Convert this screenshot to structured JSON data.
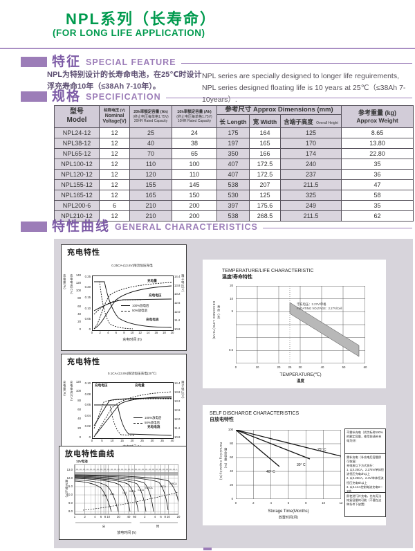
{
  "header": {
    "title_cn": "NPL系列（长寿命）",
    "title_en": "(FOR LONG LIFE APPLICATION)"
  },
  "sections": {
    "feature": {
      "cn": "特征",
      "en": "SPECIAL FEATURE"
    },
    "spec": {
      "cn": "规格",
      "en": "SPECIFICATION"
    },
    "curves": {
      "cn": "特性曲线",
      "en": "GENERAL CHARACTERISTICS"
    }
  },
  "feature": {
    "cn1": "NPL为特别设计的长寿命电池，在25℃时设计",
    "cn2": "浮充寿命10年（≤38Ah 7-10年）。",
    "en1": "NPL series are specially designed to longer life reguirements,",
    "en2": "NPL series designed floating life is 10 years at 25℃（≤38Ah 7-10years）."
  },
  "spec_table": {
    "model_cn": "型号",
    "model_en": "Model",
    "voltage_l1": "标称电压 (V)",
    "voltage_l2": "Nominal",
    "voltage_l3": "Voltage(V)",
    "cap20_l1": "20h率额定容量 (Ah)",
    "cap20_l2": "(终止电压每单格1.75V)",
    "cap20_l3": "20HR Rated Capacity",
    "cap10_l1": "10h率额定容量 (Ah)",
    "cap10_l2": "(终止电压每单格1.75V)",
    "cap10_l3": "10HR Rated Capacity",
    "dims": "参考尺寸 Approx Dimensions (mm)",
    "len": "长 Length",
    "wid": "宽 Width",
    "hgt_cn": "含端子高度",
    "hgt_en": "Overall Height",
    "wgt_l1": "参考重量 (kg)",
    "wgt_l2": "Approx Weight",
    "rows": [
      [
        "NPL24-12",
        "12",
        "25",
        "24",
        "175",
        "164",
        "125",
        "8.65"
      ],
      [
        "NPL38-12",
        "12",
        "40",
        "38",
        "197",
        "165",
        "170",
        "13.80"
      ],
      [
        "NPL65-12",
        "12",
        "70",
        "65",
        "350",
        "166",
        "174",
        "22.80"
      ],
      [
        "NPL100-12",
        "12",
        "110",
        "100",
        "407",
        "172.5",
        "240",
        "35"
      ],
      [
        "NPL120-12",
        "12",
        "120",
        "110",
        "407",
        "172.5",
        "237",
        "36"
      ],
      [
        "NPL155-12",
        "12",
        "155",
        "145",
        "538",
        "207",
        "211.5",
        "47"
      ],
      [
        "NPL165-12",
        "12",
        "165",
        "150",
        "530",
        "125",
        "325",
        "58"
      ],
      [
        "NPL200-6",
        "6",
        "210",
        "200",
        "397",
        "175.6",
        "249",
        "35"
      ],
      [
        "NPL210-12",
        "12",
        "210",
        "200",
        "538",
        "268.5",
        "211.5",
        "62"
      ]
    ]
  },
  "charts": {
    "charge1": {
      "title": "充电特性",
      "subtitle": "0.25CA-(13.8V)限流恒压充电",
      "ylabel_qty": "充电量(%)",
      "ylabel_cur": "充电电流(CA)",
      "ylabel_volt": "端子电压(V)",
      "qty_ticks": [
        "140",
        "120",
        "100",
        "80",
        "60",
        "40",
        "20",
        "0"
      ],
      "cur_ticks": [
        "0.25",
        "0.20",
        "0.15",
        "0.10",
        "0.05",
        "0"
      ],
      "volt_ticks": [
        "14.4",
        "13.8",
        "13.2",
        "12.6",
        "12.0",
        "11.4",
        "10.8"
      ],
      "x_ticks": [
        "0",
        "2",
        "4",
        "6",
        "8",
        "10",
        "12",
        "14",
        "16",
        "18",
        "20"
      ],
      "xlabel": "充电时间 (h)",
      "label_qty": "充电量",
      "label_volt": "充电电压",
      "label_cur": "充电电流",
      "legend_solid": "100%放电后",
      "legend_dash": "50%放电后"
    },
    "charge2": {
      "title": "充电特性",
      "subtitle": "0.1CA-(13.8V)限流恒压充电(20℃)",
      "ylabel_qty": "充电量(%)",
      "ylabel_cur": "充电电流(CA)",
      "ylabel_volt": "端子电压(V)",
      "qty_ticks": [
        "120",
        "100",
        "80",
        "60",
        "40",
        "20",
        "0"
      ],
      "cur_ticks": [
        "0.10",
        "0.08",
        "0.06",
        "0.04",
        "0.02",
        "0"
      ],
      "volt_ticks": [
        "14.4",
        "13.8",
        "13.2",
        "12.6",
        "12.0",
        "11.4",
        "10.8"
      ],
      "x_ticks": [
        "0",
        "5",
        "10",
        "15",
        "20",
        "25",
        "30",
        "35",
        "40"
      ],
      "xlabel": "充电时间 (h)",
      "label_qty": "充电量",
      "label_volt": "充电电压",
      "label_cur": "充电电流",
      "legend_solid": "100%放电后",
      "legend_dash": "50%放电后"
    },
    "discharge": {
      "title": "放电特性曲线",
      "battery": "12V电池",
      "ylabel": "端子电压(V)",
      "y_ticks": [
        "13.0",
        "12.0",
        "11.0",
        "10.0",
        "9.0",
        "8.0"
      ],
      "x_ticks": [
        "1",
        "2",
        "4",
        "6",
        "8",
        "10",
        "20",
        "40",
        "60",
        "2",
        "4",
        "6",
        "8",
        "10",
        "20"
      ],
      "unit_min": "分",
      "unit_hour": "时",
      "xlabel": "放电时间 (h)",
      "curve_labels": [
        "3CA",
        "2CA",
        "1CA",
        "0.6CA",
        "0.4CA",
        "0.25CA",
        "0.1CA",
        "0.05CA"
      ]
    },
    "temp_life": {
      "title_en": "TEMPERATURE/LIFE CHARACTERISTIC",
      "title_cn": "温度/寿命特性",
      "ylabel_cn": "寿命（年）",
      "ylabel_en": "DESIGNED LIFE(YEAR)",
      "y_ticks": [
        "20",
        "10",
        "5",
        "0.5"
      ],
      "x_ticks": [
        "0",
        "10",
        "20",
        "25",
        "30",
        "40",
        "50",
        "60"
      ],
      "xlabel_en": "TEMPERATURE(℃)",
      "xlabel_cn": "温度",
      "note_cn": "浮充电压：2.27V/单格",
      "note_en": "FLOATING VOLTAGE : 2.27V/Cell"
    },
    "self_discharge": {
      "title_en": "SELF DISCHARGE CHARACTERISTICS",
      "title_cn": "自放电特性",
      "ylabel_en": "Remaining Capacity(%)",
      "ylabel_cn": "剩余容量（%）",
      "y_ticks": [
        "100",
        "80",
        "60",
        "40",
        "20",
        "0"
      ],
      "x_ticks": [
        "0",
        "2",
        "4",
        "6",
        "8",
        "10",
        "12"
      ],
      "xlabel_en": "Storage Time(Months)",
      "xlabel_cn": "放置时间(月)",
      "labels": [
        "25° C",
        "30° C",
        "40° C"
      ],
      "notes": [
        "不需补充电（尚为标称100%的额定容量，使用前请补充电为好）",
        "需补充电（补充电后容量即可恢复）\n充电按以下方式执行：\n1. 以0.25CA，2.275V/单体恒流恒压充电3h以上\n2. 以0.25CA，2.4V/单体恒流恒压充电6h以上\n3. 以0.1CA控制电流充电8～10h",
        "即使进行补充电，也有无法恢复容量的可能（不要在这种条件下放置）"
      ]
    }
  },
  "chart_data": [
    {
      "type": "line",
      "title": "SELF DISCHARGE CHARACTERISTICS 自放电特性",
      "xlabel": "Storage Time(Months)",
      "ylabel": "Remaining Capacity(%)",
      "xlim": [
        0,
        12
      ],
      "ylim": [
        0,
        100
      ],
      "grid": true,
      "series": [
        {
          "name": "25°C",
          "x": [
            0,
            12
          ],
          "y": [
            100,
            62
          ]
        },
        {
          "name": "30°C",
          "x": [
            0,
            8.5
          ],
          "y": [
            100,
            58
          ]
        },
        {
          "name": "40°C",
          "x": [
            0,
            5
          ],
          "y": [
            100,
            47
          ]
        }
      ]
    },
    {
      "type": "area",
      "title": "TEMPERATURE/LIFE CHARACTERISTIC 温度/寿命特性",
      "xlabel": "TEMPERATURE(℃)",
      "ylabel": "DESIGNED LIFE(YEAR)",
      "xlim": [
        0,
        60
      ],
      "yscale": "log",
      "ylim": [
        0.4,
        20
      ],
      "grid": true,
      "band": {
        "x": [
          25,
          57
        ],
        "y_top": [
          10.5,
          1.0
        ],
        "y_bottom": [
          7,
          0.65
        ]
      },
      "annotation": "浮充电压：2.27V/单格 FLOATING VOLTAGE : 2.27V/Cell"
    }
  ]
}
